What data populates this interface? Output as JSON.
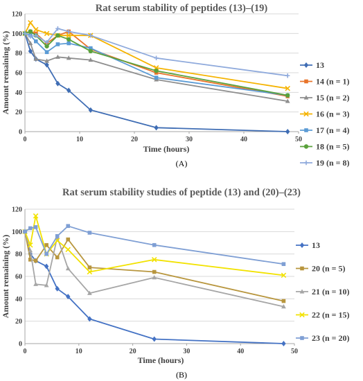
{
  "chart_data": [
    {
      "id": "A",
      "type": "line",
      "title": "Rat serum stability of peptides (13)–(19)",
      "xlabel": "Time (hours)",
      "ylabel": "Amount remaining (%)",
      "panel_label": "(A)",
      "xlim": [
        0,
        50
      ],
      "ylim": [
        0,
        120
      ],
      "xticks": [
        0,
        10,
        20,
        30,
        40,
        50
      ],
      "yticks": [
        0,
        20,
        40,
        60,
        80,
        100,
        120
      ],
      "grid": "horizontal",
      "legend_position": "right",
      "series": [
        {
          "name": "13",
          "color": "#3F6DB4",
          "marker": "diamond",
          "x": [
            0,
            1,
            2,
            4,
            6,
            8,
            12,
            24,
            48
          ],
          "y": [
            100,
            82,
            74,
            68,
            49,
            42,
            22,
            4,
            0
          ]
        },
        {
          "name": "14 (n = 1)",
          "color": "#E8742A",
          "marker": "square",
          "x": [
            0,
            1,
            2,
            4,
            6,
            8,
            12,
            24,
            48
          ],
          "y": [
            100,
            102,
            100,
            90,
            98,
            102,
            84,
            60,
            36
          ]
        },
        {
          "name": "15 (n = 2)",
          "color": "#8E8E8E",
          "marker": "triangle",
          "x": [
            0,
            1,
            2,
            4,
            6,
            8,
            12,
            24,
            48
          ],
          "y": [
            100,
            90,
            74,
            72,
            76,
            75,
            73,
            53,
            31
          ]
        },
        {
          "name": "16 (n = 3)",
          "color": "#F5B300",
          "marker": "x",
          "x": [
            0,
            1,
            2,
            4,
            6,
            8,
            12,
            24,
            48
          ],
          "y": [
            100,
            111,
            104,
            100,
            98,
            98,
            98,
            65,
            44
          ]
        },
        {
          "name": "17 (n = 4)",
          "color": "#5B9BD5",
          "marker": "square",
          "x": [
            0,
            1,
            2,
            4,
            6,
            8,
            12,
            24,
            48
          ],
          "y": [
            100,
            98,
            92,
            81,
            89,
            90,
            85,
            55,
            37
          ]
        },
        {
          "name": "18 (n = 5)",
          "color": "#5AA13B",
          "marker": "circle",
          "x": [
            0,
            1,
            2,
            4,
            6,
            8,
            12,
            24,
            48
          ],
          "y": [
            100,
            102,
            98,
            87,
            98,
            94,
            82,
            62,
            37
          ]
        },
        {
          "name": "19 (n = 8)",
          "color": "#8FAADC",
          "marker": "plus",
          "x": [
            0,
            1,
            2,
            4,
            6,
            8,
            12,
            24,
            48
          ],
          "y": [
            100,
            97,
            98,
            91,
            105,
            102,
            98,
            75,
            57
          ]
        }
      ]
    },
    {
      "id": "B",
      "type": "line",
      "title": "Rat serum stability studies of peptide (13) and  (20)–(23)",
      "xlabel": "Time (hours)",
      "ylabel": "Amount remaining (%)",
      "panel_label": "(B)",
      "xlim": [
        0,
        50
      ],
      "ylim": [
        0,
        120
      ],
      "xticks": [
        0,
        10,
        20,
        30,
        40,
        50
      ],
      "yticks": [
        0,
        20,
        40,
        60,
        80,
        100,
        120
      ],
      "grid": "horizontal",
      "legend_position": "right",
      "series": [
        {
          "name": "13",
          "color": "#4472C4",
          "marker": "diamond",
          "x": [
            0,
            1,
            2,
            4,
            6,
            8,
            12,
            24,
            48
          ],
          "y": [
            100,
            80,
            74,
            69,
            49,
            42,
            22,
            4,
            0
          ]
        },
        {
          "name": "20 (n = 5)",
          "color": "#B8963E",
          "marker": "square",
          "x": [
            0,
            1,
            2,
            4,
            6,
            8,
            12,
            24,
            48
          ],
          "y": [
            100,
            75,
            74,
            88,
            77,
            93,
            68,
            64,
            38
          ]
        },
        {
          "name": "21 (n = 10)",
          "color": "#A6A6A6",
          "marker": "triangle",
          "x": [
            0,
            1,
            2,
            4,
            6,
            8,
            12,
            24,
            48
          ],
          "y": [
            100,
            83,
            53,
            52,
            95,
            67,
            45,
            59,
            33
          ]
        },
        {
          "name": "22 (n = 15)",
          "color": "#F2E200",
          "marker": "x",
          "x": [
            0,
            1,
            2,
            4,
            6,
            8,
            12,
            24,
            48
          ],
          "y": [
            100,
            88,
            114,
            80,
            92,
            84,
            64,
            75,
            61
          ]
        },
        {
          "name": "23 (n = 20)",
          "color": "#7F9FD4",
          "marker": "square",
          "x": [
            0,
            1,
            2,
            4,
            6,
            8,
            12,
            24,
            48
          ],
          "y": [
            100,
            103,
            104,
            80,
            96,
            105,
            99,
            88,
            71
          ]
        }
      ]
    }
  ]
}
